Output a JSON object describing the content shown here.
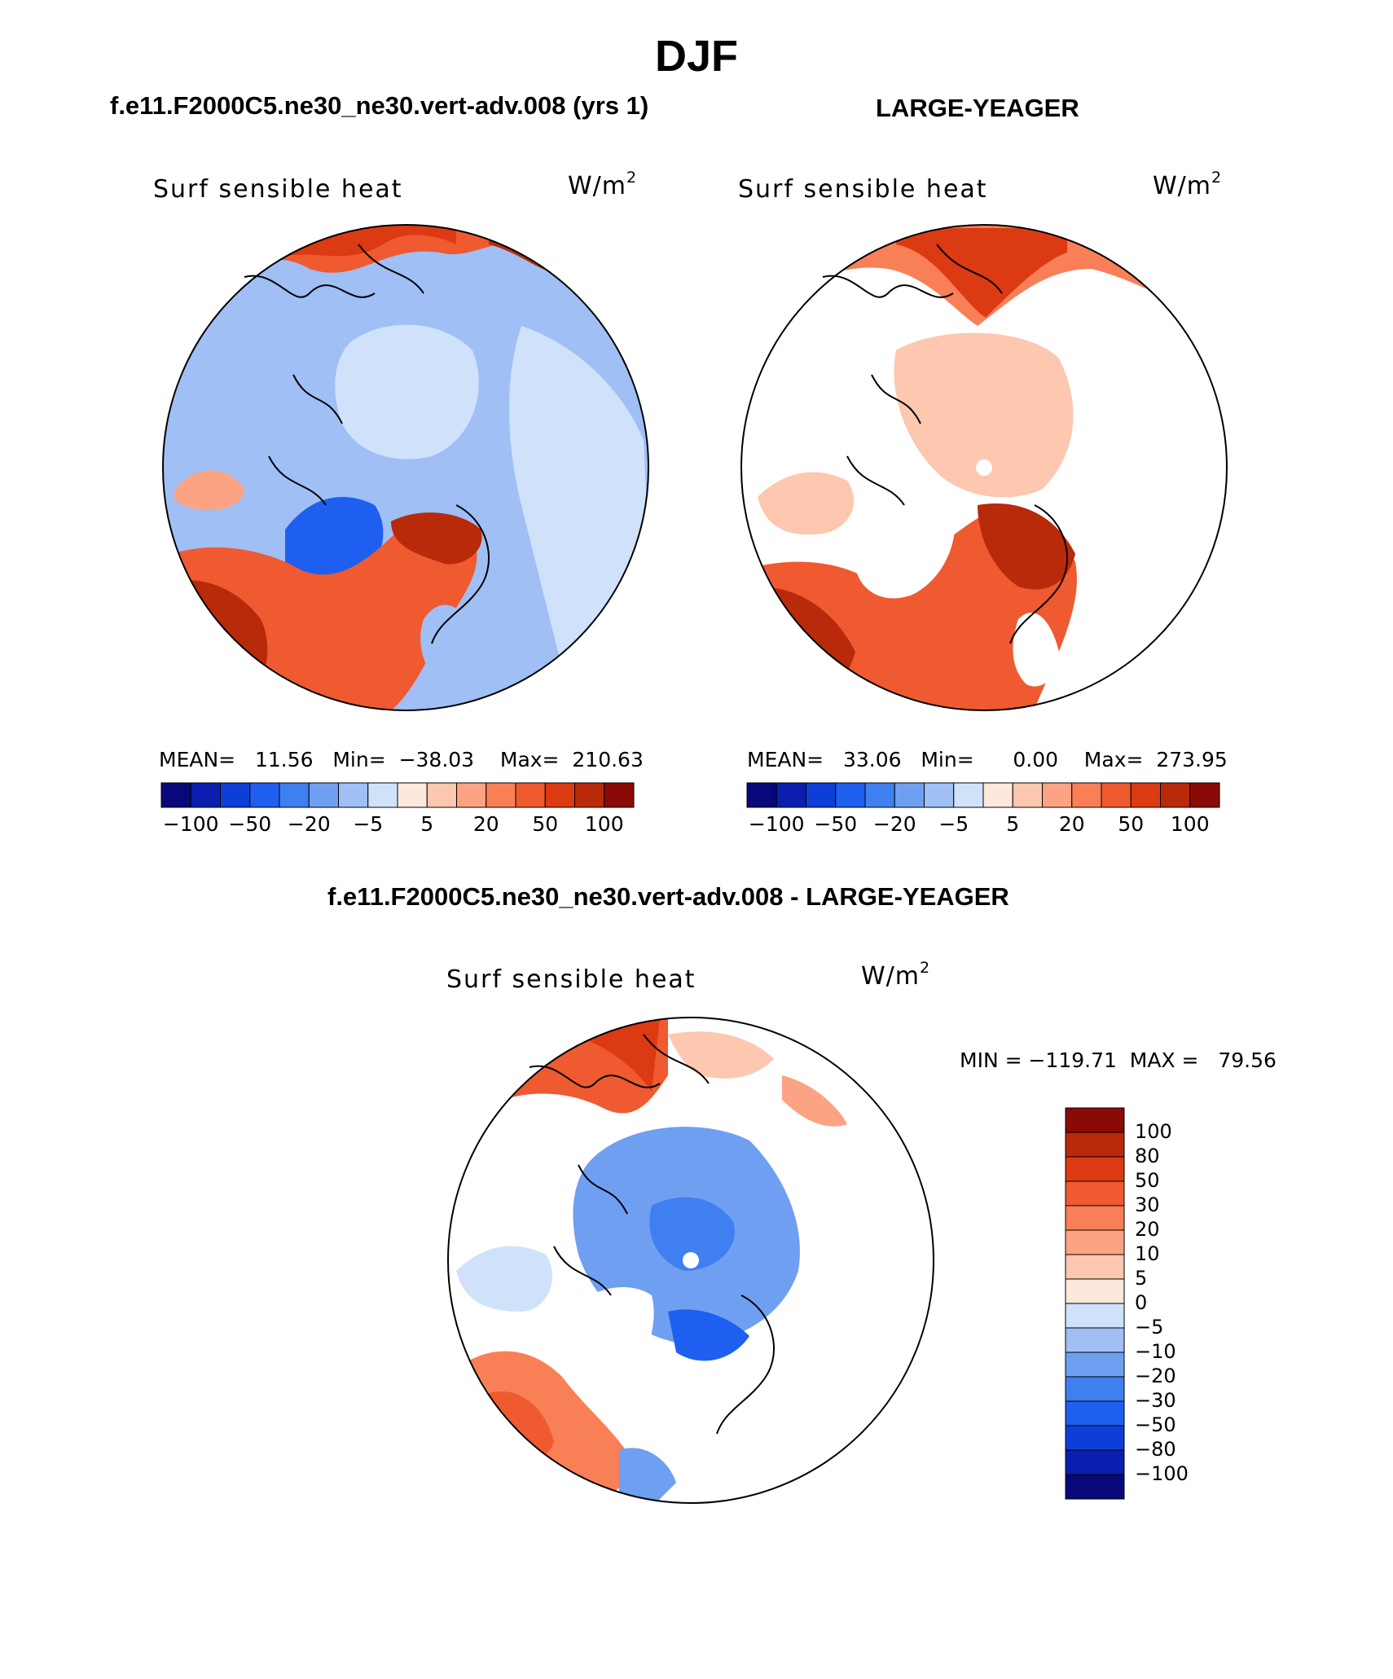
{
  "figure": {
    "title": "DJF",
    "left_panel": {
      "title": "f.e11.F2000C5.ne30_ne30.vert-adv.008 (yrs 1)",
      "variable": "Surf sensible heat",
      "units_base": "W/m",
      "units_exp": "2",
      "stats": "MEAN=   11.56   Min=  −38.03    Max=  210.63",
      "colorbar_ticks": [
        "−100",
        "−50",
        "−20",
        "−5",
        "5",
        "20",
        "50",
        "100"
      ]
    },
    "right_panel": {
      "title": "LARGE-YEAGER",
      "variable": "Surf sensible heat",
      "units_base": "W/m",
      "units_exp": "2",
      "stats": "MEAN=   33.06   Min=      0.00    Max=  273.95",
      "colorbar_ticks": [
        "−100",
        "−50",
        "−20",
        "−5",
        "5",
        "20",
        "50",
        "100"
      ]
    },
    "diff_panel": {
      "title": "f.e11.F2000C5.ne30_ne30.vert-adv.008 - LARGE-YEAGER",
      "variable": "Surf sensible heat",
      "units_base": "W/m",
      "units_exp": "2",
      "stats": "MIN = −119.71  MAX =   79.56",
      "colorbar_ticks": [
        "100",
        "80",
        "50",
        "30",
        "20",
        "10",
        "5",
        "0",
        "−5",
        "−10",
        "−20",
        "−30",
        "−50",
        "−80",
        "−100"
      ]
    },
    "colors": {
      "palette": [
        "#08087a",
        "#0a1fb0",
        "#0d3fd8",
        "#1f5ff0",
        "#3f7ff0",
        "#6f9ff0",
        "#9fbff5",
        "#cfe2fa",
        "#fde8dc",
        "#fdc7b0",
        "#fca383",
        "#f97f57",
        "#ef5a30",
        "#dc3a12",
        "#b82a0a",
        "#8b0a05"
      ],
      "diff_palette": [
        "#8b0a05",
        "#b82a0a",
        "#dc3a12",
        "#ef5a30",
        "#f97f57",
        "#fca383",
        "#fdc7b0",
        "#fde8dc",
        "#cfe2fa",
        "#9fbff5",
        "#6f9ff0",
        "#3f7ff0",
        "#1f5ff0",
        "#0d3fd8",
        "#0a1fb0",
        "#08087a"
      ]
    }
  }
}
